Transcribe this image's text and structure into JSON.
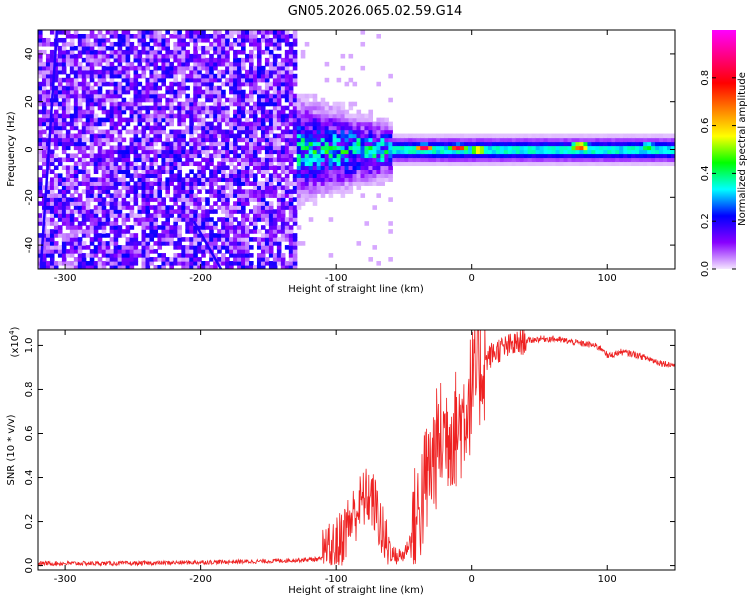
{
  "title": "GN05.2026.065.02.59.G14",
  "chart_data": [
    {
      "type": "heatmap",
      "name": "spectrogram",
      "xlabel": "Height of straight line (km)",
      "ylabel": "Frequency (Hz)",
      "xlim": [
        -320,
        150
      ],
      "ylim": [
        -50,
        50
      ],
      "xticks": [
        -300,
        -200,
        -100,
        0,
        100
      ],
      "xtick_labels": [
        "-300",
        "-200",
        "-100",
        "0",
        "100"
      ],
      "yticks": [
        -40,
        -20,
        0,
        20,
        40
      ],
      "ytick_labels": [
        "-40",
        "-20",
        "0",
        "20",
        "40"
      ],
      "colorbar": {
        "label": "Normalized spectral amplitude",
        "range": [
          0,
          1
        ],
        "ticks": [
          0,
          0.2,
          0.4,
          0.6,
          0.8
        ],
        "tick_labels": [
          "0.0",
          "0.2",
          "0.4",
          "0.6",
          "0.8"
        ],
        "colors": [
          "#f4e6ff",
          "#8800ff",
          "#0000ff",
          "#00ffff",
          "#00ff00",
          "#ffff00",
          "#ff8000",
          "#ff0000",
          "#ff0080",
          "#ff00ff"
        ]
      },
      "features": {
        "noise_region_x": [
          -320,
          -130
        ],
        "transition_x": [
          -130,
          -60
        ],
        "signal_center_freq": 0,
        "hotspots": [
          {
            "x": -35,
            "y": 1,
            "value": 0.9
          },
          {
            "x": -10,
            "y": 1,
            "value": 0.85
          },
          {
            "x": 5,
            "y": 0,
            "value": 0.8
          },
          {
            "x": 80,
            "y": 1.5,
            "value": 0.9
          },
          {
            "x": 130,
            "y": 1.5,
            "value": 0.55
          }
        ],
        "streak_lines": [
          {
            "x": [
              -318,
              -306
            ],
            "y": [
              -50,
              50
            ]
          },
          {
            "x": [
              -205,
              -185
            ],
            "y": [
              -30,
              -50
            ]
          }
        ]
      }
    },
    {
      "type": "line",
      "name": "snr",
      "xlabel": "Height of straight line (km)",
      "ylabel": "SNR (10 * v/v)",
      "scale_label": "(x10",
      "scale_exponent": "4",
      "scale_suffix": ")",
      "xlim": [
        -320,
        150
      ],
      "ylim": [
        -0.02,
        1.07
      ],
      "xticks": [
        -300,
        -200,
        -100,
        0,
        100
      ],
      "xtick_labels": [
        "-300",
        "-200",
        "-100",
        "0",
        "100"
      ],
      "yticks": [
        0,
        0.2,
        0.4,
        0.6,
        0.8,
        1.0
      ],
      "ytick_labels": [
        "0.0",
        "0.2",
        "0.4",
        "0.6",
        "0.8",
        "1.0"
      ],
      "line_color": "#ee2222",
      "envelope_x": [
        -320,
        -250,
        -200,
        -150,
        -110,
        -100,
        -90,
        -80,
        -75,
        -70,
        -65,
        -60,
        -55,
        -50,
        -45,
        -40,
        -35,
        -30,
        -25,
        -20,
        -15,
        -10,
        -5,
        0,
        5,
        10,
        15,
        20,
        25,
        30,
        40,
        50,
        60,
        70,
        80,
        90,
        98,
        100,
        110,
        120,
        130,
        140,
        150
      ],
      "envelope_y": [
        0.01,
        0.01,
        0.015,
        0.02,
        0.03,
        0.08,
        0.2,
        0.3,
        0.32,
        0.25,
        0.12,
        0.06,
        0.04,
        0.05,
        0.12,
        0.22,
        0.35,
        0.45,
        0.55,
        0.6,
        0.62,
        0.62,
        0.7,
        0.8,
        0.88,
        0.93,
        0.96,
        0.98,
        0.99,
        1.0,
        1.02,
        1.03,
        1.03,
        1.02,
        1.01,
        1.0,
        0.98,
        0.95,
        0.97,
        0.96,
        0.94,
        0.92,
        0.91
      ],
      "noise_amplitude": [
        {
          "x": [
            -320,
            -110
          ],
          "amp": 0.01
        },
        {
          "x": [
            -110,
            -60
          ],
          "amp": 0.14
        },
        {
          "x": [
            -60,
            -45
          ],
          "amp": 0.04
        },
        {
          "x": [
            -45,
            10
          ],
          "amp": 0.28
        },
        {
          "x": [
            10,
            40
          ],
          "amp": 0.06
        },
        {
          "x": [
            40,
            150
          ],
          "amp": 0.015
        }
      ]
    }
  ]
}
